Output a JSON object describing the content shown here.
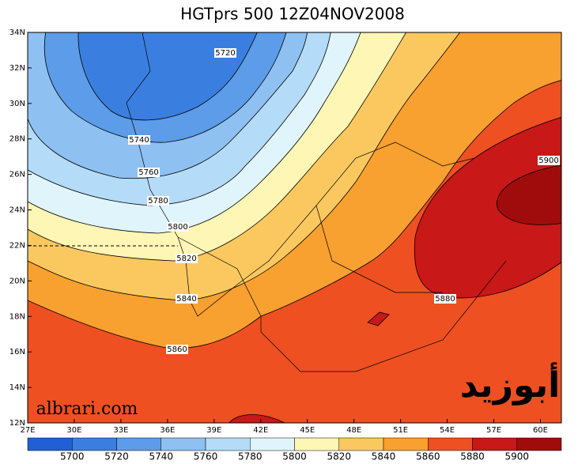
{
  "title": "HGTprs 500 12Z04NOV2008",
  "lon_labels": [
    "27E",
    "30E",
    "33E",
    "36E",
    "39E",
    "42E",
    "45E",
    "48E",
    "51E",
    "54E",
    "57E",
    "60E"
  ],
  "lat_labels": [
    "34N",
    "32N",
    "30N",
    "28N",
    "26N",
    "24N",
    "22N",
    "20N",
    "18N",
    "16N",
    "14N",
    "12N"
  ],
  "contour_labels": [
    "5720",
    "5740",
    "5760",
    "5780",
    "5800",
    "5820",
    "5840",
    "5860",
    "5880",
    "5900"
  ],
  "colorbar": {
    "levels": [
      5700,
      5720,
      5740,
      5760,
      5780,
      5800,
      5820,
      5840,
      5860,
      5880,
      5900
    ],
    "colors": [
      "#2060d4",
      "#3a7fe0",
      "#5c9ce8",
      "#8ec0f2",
      "#b4dbf8",
      "#e0f4fb",
      "#fef6b4",
      "#fbc860",
      "#f8a030",
      "#ee5022",
      "#c81818",
      "#a00c0c"
    ]
  },
  "watermark": "albrari.com",
  "logo": "أبوزيد"
}
